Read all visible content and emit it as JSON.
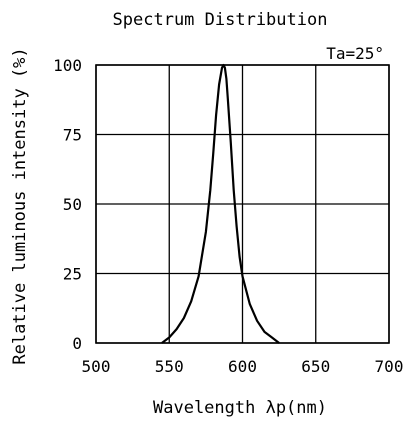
{
  "chart_data": {
    "type": "line",
    "title": "Spectrum Distribution",
    "annotation": "Ta=25°",
    "xlabel": "Wavelength λp(nm)",
    "ylabel": "Relative luminous intensity (%)",
    "xlim": [
      500,
      700
    ],
    "ylim": [
      0,
      100
    ],
    "x_ticks": [
      500,
      550,
      600,
      650,
      700
    ],
    "y_ticks": [
      0,
      25,
      50,
      75,
      100
    ],
    "grid": true,
    "series": [
      {
        "x": [
          545,
          550,
          555,
          560,
          565,
          570,
          575,
          578,
          580,
          582,
          584,
          586,
          587,
          588,
          589,
          590,
          592,
          594,
          596,
          598,
          600,
          605,
          610,
          615,
          620,
          625
        ],
        "y": [
          0,
          2,
          5,
          9,
          15,
          24,
          40,
          55,
          68,
          82,
          93,
          99,
          100,
          99,
          95,
          88,
          72,
          55,
          42,
          31,
          24,
          14,
          8,
          4,
          2,
          0
        ]
      }
    ]
  }
}
